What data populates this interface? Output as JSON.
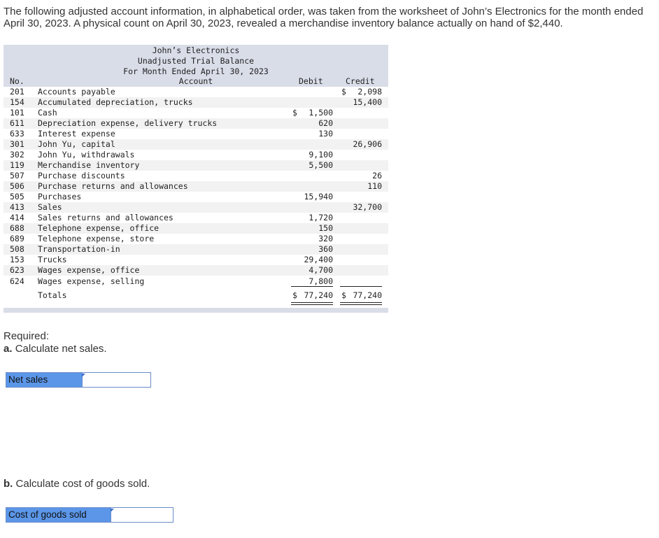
{
  "intro": "The following adjusted account information, in alphabetical order, was taken from the worksheet of John’s Electronics for the month ended April 30, 2023. A physical count on April 30, 2023, revealed a merchandise inventory balance actually on hand of $2,440.",
  "trial_balance": {
    "company": "John’s Electronics",
    "title": "Unadjusted Trial Balance",
    "period": "For Month Ended April 30, 2023",
    "headers": {
      "no": "No.",
      "account": "Account",
      "debit": "Debit",
      "credit": "Credit"
    },
    "rows": [
      {
        "no": "201",
        "account": "Accounts payable",
        "debit": "",
        "credit": "2,098",
        "credit_cur": "$"
      },
      {
        "no": "154",
        "account": "Accumulated depreciation, trucks",
        "debit": "",
        "credit": "15,400"
      },
      {
        "no": "101",
        "account": "Cash",
        "debit": "1,500",
        "debit_cur": "$",
        "credit": ""
      },
      {
        "no": "611",
        "account": "Depreciation expense, delivery trucks",
        "debit": "620",
        "credit": ""
      },
      {
        "no": "633",
        "account": "Interest expense",
        "debit": "130",
        "credit": ""
      },
      {
        "no": "301",
        "account": "John Yu, capital",
        "debit": "",
        "credit": "26,906"
      },
      {
        "no": "302",
        "account": "John Yu, withdrawals",
        "debit": "9,100",
        "credit": ""
      },
      {
        "no": "119",
        "account": "Merchandise inventory",
        "debit": "5,500",
        "credit": ""
      },
      {
        "no": "507",
        "account": "Purchase discounts",
        "debit": "",
        "credit": "26"
      },
      {
        "no": "506",
        "account": "Purchase returns and allowances",
        "debit": "",
        "credit": "110"
      },
      {
        "no": "505",
        "account": "Purchases",
        "debit": "15,940",
        "credit": ""
      },
      {
        "no": "413",
        "account": "Sales",
        "debit": "",
        "credit": "32,700"
      },
      {
        "no": "414",
        "account": "Sales returns and allowances",
        "debit": "1,720",
        "credit": ""
      },
      {
        "no": "688",
        "account": "Telephone expense, office",
        "debit": "150",
        "credit": ""
      },
      {
        "no": "689",
        "account": "Telephone expense, store",
        "debit": "320",
        "credit": ""
      },
      {
        "no": "508",
        "account": "Transportation-in",
        "debit": "360",
        "credit": ""
      },
      {
        "no": "153",
        "account": "Trucks",
        "debit": "29,400",
        "credit": ""
      },
      {
        "no": "623",
        "account": "Wages expense, office",
        "debit": "4,700",
        "credit": ""
      },
      {
        "no": "624",
        "account": "Wages expense, selling",
        "debit": "7,800",
        "credit": ""
      }
    ],
    "totals": {
      "label": "Totals",
      "currency": "$",
      "debit": "77,240",
      "credit": "77,240"
    }
  },
  "required": {
    "heading": "Required:",
    "part_a": {
      "letter": "a.",
      "text": "Calculate net sales.",
      "label": "Net sales",
      "value": ""
    },
    "part_b": {
      "letter": "b.",
      "text": "Calculate cost of goods sold.",
      "label": "Cost of goods sold",
      "value": ""
    }
  }
}
